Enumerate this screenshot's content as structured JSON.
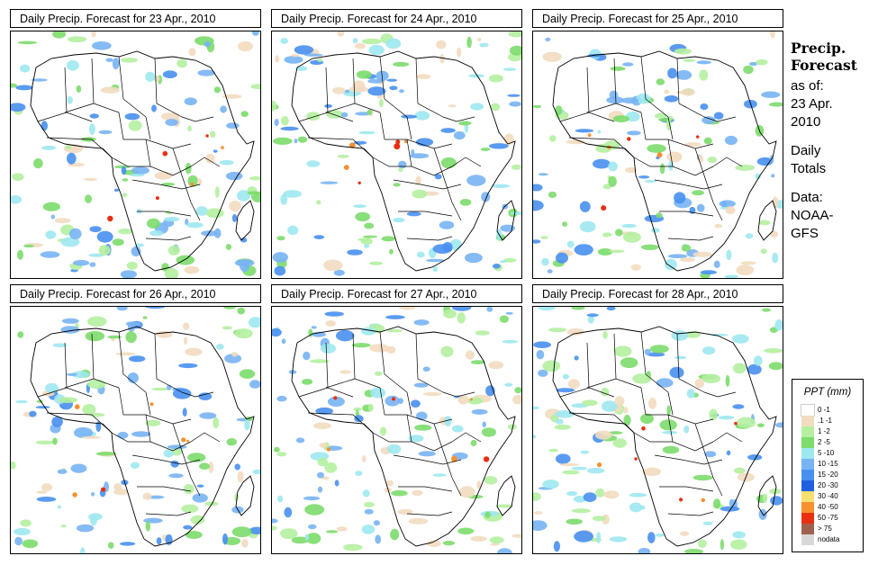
{
  "panels": [
    {
      "title": "Daily Precip. Forecast for  23 Apr., 2010"
    },
    {
      "title": "Daily Precip. Forecast for  24 Apr., 2010"
    },
    {
      "title": "Daily Precip. Forecast for  25 Apr., 2010"
    },
    {
      "title": "Daily Precip. Forecast for  26 Apr., 2010"
    },
    {
      "title": "Daily Precip. Forecast for  27 Apr., 2010"
    },
    {
      "title": "Daily Precip. Forecast for  28 Apr., 2010"
    }
  ],
  "side": {
    "title_line1": "Precip.",
    "title_line2": "Forecast",
    "asof_line1": "as of:",
    "asof_line2": "23 Apr.",
    "asof_line3": "2010",
    "daily_line1": "Daily",
    "daily_line2": "Totals",
    "data_line1": "Data:",
    "data_line2": "NOAA-",
    "data_line3": "GFS"
  },
  "legend": {
    "title": "PPT (mm)",
    "items": [
      {
        "label": "0 -1",
        "color": "#ffffff"
      },
      {
        "label": ".1 -1",
        "color": "#f2dcc0"
      },
      {
        "label": "1 -2",
        "color": "#b4f0a0"
      },
      {
        "label": "2 -5",
        "color": "#7cdc6c"
      },
      {
        "label": "5 -10",
        "color": "#9ee8f0"
      },
      {
        "label": "10 -15",
        "color": "#78b4f4"
      },
      {
        "label": "15 -20",
        "color": "#4890f0"
      },
      {
        "label": "20 -30",
        "color": "#2060e0"
      },
      {
        "label": "30 -40",
        "color": "#f8e070"
      },
      {
        "label": "40 -50",
        "color": "#f89030"
      },
      {
        "label": "50 -75",
        "color": "#e83010"
      },
      {
        "label": "> 75",
        "color": "#a06050"
      },
      {
        "label": "nodata",
        "color": "#d8d8d8"
      }
    ]
  }
}
